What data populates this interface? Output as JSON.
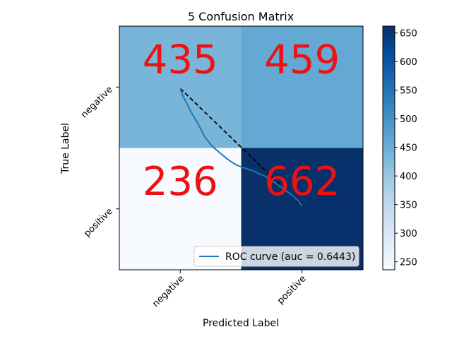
{
  "chart_data": {
    "type": "heatmap",
    "title": "5 Confusion Matrix",
    "xlabel": "Predicted Label",
    "ylabel": "True Label",
    "x_categories": [
      "negative",
      "positive"
    ],
    "y_categories": [
      "negative",
      "positive"
    ],
    "values": [
      [
        435,
        459
      ],
      [
        236,
        662
      ]
    ],
    "colormap": "Blues",
    "color_range": [
      236,
      662
    ],
    "colorbar_ticks": [
      250,
      300,
      350,
      400,
      450,
      500,
      550,
      600,
      650
    ],
    "cell_text_color": "#ee1111",
    "overlay": {
      "roc_label": "ROC curve (auc = 0.6443)",
      "roc_color": "#1f77b4",
      "diagonal_color": "#000000",
      "legend_position": "lower-right",
      "roc_points": [
        [
          0.0,
          0.0
        ],
        [
          0.01,
          0.03
        ],
        [
          0.02,
          0.06
        ],
        [
          0.035,
          0.09
        ],
        [
          0.05,
          0.12
        ],
        [
          0.065,
          0.15
        ],
        [
          0.08,
          0.185
        ],
        [
          0.1,
          0.22
        ],
        [
          0.12,
          0.255
        ],
        [
          0.14,
          0.29
        ],
        [
          0.16,
          0.33
        ],
        [
          0.18,
          0.37
        ],
        [
          0.2,
          0.41
        ],
        [
          0.23,
          0.45
        ],
        [
          0.26,
          0.49
        ],
        [
          0.3,
          0.525
        ],
        [
          0.34,
          0.56
        ],
        [
          0.38,
          0.595
        ],
        [
          0.42,
          0.625
        ],
        [
          0.46,
          0.65
        ],
        [
          0.52,
          0.675
        ],
        [
          0.58,
          0.695
        ],
        [
          0.64,
          0.72
        ],
        [
          0.7,
          0.75
        ],
        [
          0.76,
          0.79
        ],
        [
          0.82,
          0.83
        ],
        [
          0.88,
          0.88
        ],
        [
          0.93,
          0.92
        ],
        [
          0.97,
          0.96
        ],
        [
          1.0,
          1.0
        ]
      ]
    }
  }
}
